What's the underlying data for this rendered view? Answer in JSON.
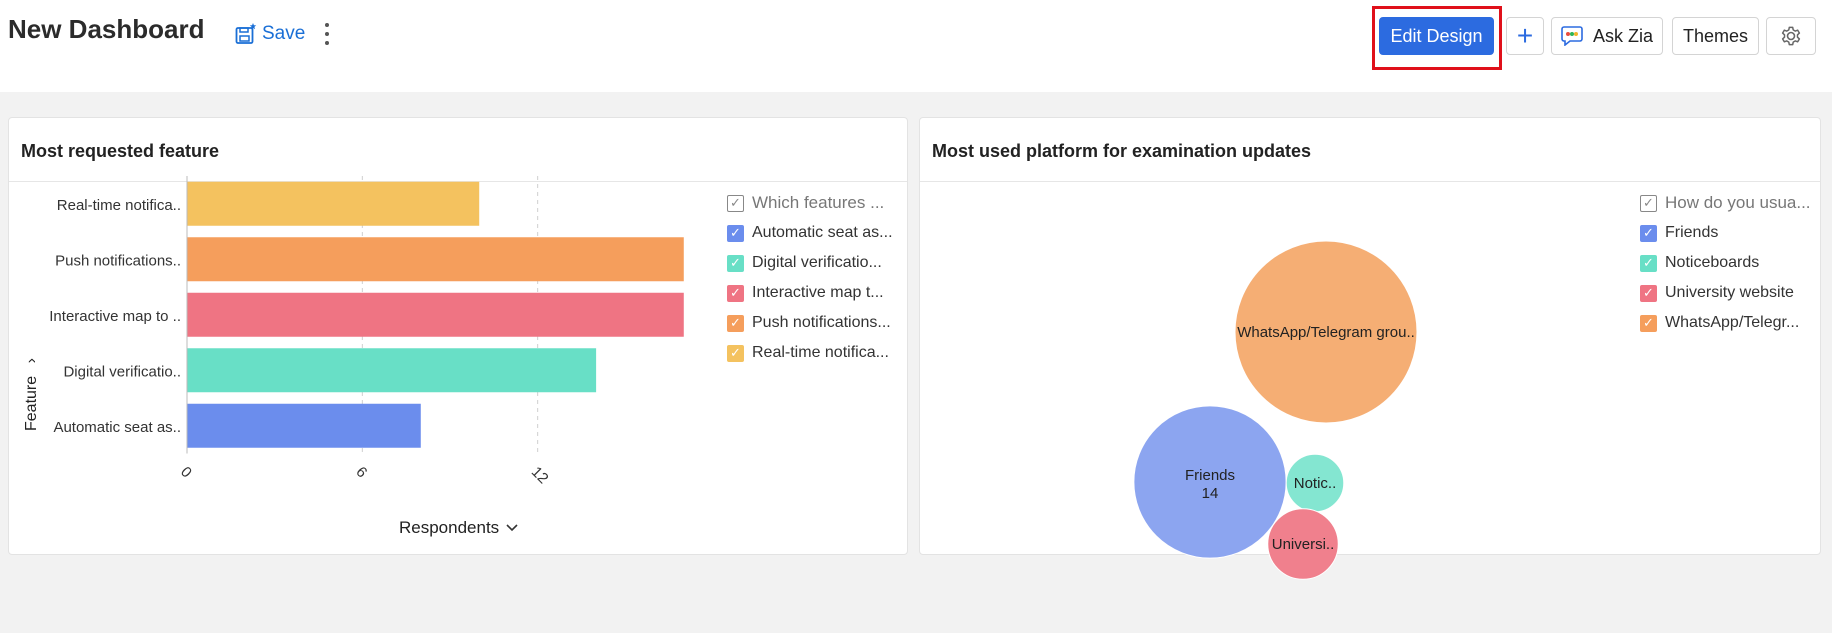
{
  "header": {
    "title": "New Dashboard",
    "save_label": "Save",
    "edit_design_label": "Edit Design",
    "add_label": "+",
    "ask_zia_label": "Ask Zia",
    "themes_label": "Themes"
  },
  "widgets": [
    {
      "title": "Most requested feature",
      "legend_title": "Which features ...",
      "legend_items": [
        {
          "label": "Automatic seat as...",
          "color": "#6b8ded"
        },
        {
          "label": "Digital verificatio...",
          "color": "#68dfc6"
        },
        {
          "label": "Interactive map t...",
          "color": "#ef7483"
        },
        {
          "label": "Push notifications...",
          "color": "#f59e5c"
        },
        {
          "label": "Real-time notifica...",
          "color": "#f4c25f"
        }
      ],
      "chart_data": {
        "type": "bar",
        "orientation": "horizontal",
        "categories": [
          "Real-time notifica..",
          "Push notifications..",
          "Interactive map to ..",
          "Digital verificatio..",
          "Automatic seat as.."
        ],
        "values": [
          10,
          17,
          17,
          14,
          8
        ],
        "colors": [
          "#f4c25f",
          "#f59e5c",
          "#ef7483",
          "#68dfc6",
          "#6b8ded"
        ],
        "xlabel": "Respondents",
        "ylabel": "Feature",
        "xticks": [
          0,
          6,
          12
        ],
        "xlim": [
          0,
          18
        ],
        "grid": true
      }
    },
    {
      "title": "Most used platform for examination updates",
      "legend_title": "How do you usua...",
      "legend_items": [
        {
          "label": "Friends",
          "color": "#6b8ded"
        },
        {
          "label": "Noticeboards",
          "color": "#68dfc6"
        },
        {
          "label": "University website",
          "color": "#ef7483"
        },
        {
          "label": "WhatsApp/Telegr...",
          "color": "#f59e5c"
        }
      ],
      "chart_data": {
        "type": "bubble",
        "bubbles": [
          {
            "label": "WhatsApp/Telegram grou..",
            "value": 20,
            "color": "#f5ae74"
          },
          {
            "label": "Friends",
            "value_label": "14",
            "value": 14,
            "color": "#8ca5f0"
          },
          {
            "label": "Notic..",
            "value": 2,
            "color": "#84e6d1"
          },
          {
            "label": "Universi..",
            "value": 3,
            "color": "#f0808d"
          }
        ]
      }
    }
  ]
}
